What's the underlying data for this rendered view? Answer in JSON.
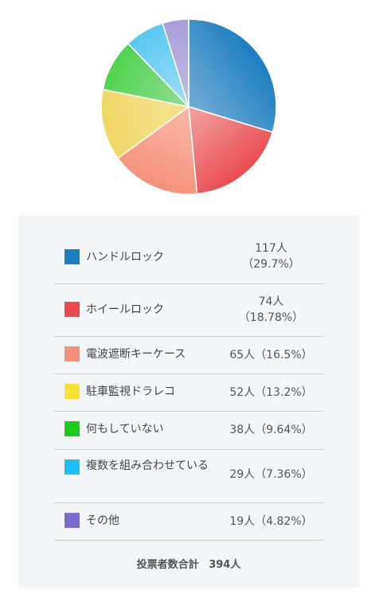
{
  "chart_data": {
    "type": "pie",
    "series": [
      {
        "name": "ハンドルロック",
        "count": 117,
        "count_label": "117人",
        "percent_label": "（29.7%）",
        "color": "#1a7ec0"
      },
      {
        "name": "ホイールロック",
        "count": 74,
        "count_label": "74人",
        "percent_label": "（18.78%）",
        "color": "#e94b4e"
      },
      {
        "name": "電波遮断キーケース",
        "count": 65,
        "count_label": "65人",
        "percent_label": "（16.5%）",
        "color": "#f5917a"
      },
      {
        "name": "駐車監視ドラレコ",
        "count": 52,
        "count_label": "52人",
        "percent_label": "（13.2%）",
        "color": "#f7df34"
      },
      {
        "name": "何もしていない",
        "count": 38,
        "count_label": "38人",
        "percent_label": "（9.64%）",
        "color": "#1ccb1c"
      },
      {
        "name": "複数を組み合わせている",
        "count": 29,
        "count_label": "29人",
        "percent_label": "（7.36%）",
        "color": "#1fbff5"
      },
      {
        "name": "その他",
        "count": 19,
        "count_label": "19人",
        "percent_label": "（4.82%）",
        "color": "#7d6bca"
      }
    ],
    "slice_colors": [
      [
        "#6da8d4",
        "#1a7ec0"
      ],
      [
        "#f29b9d",
        "#e94b4e"
      ],
      [
        "#f7b6a2",
        "#f5917a"
      ],
      [
        "#f2e391",
        "#f0d866"
      ],
      [
        "#8edc8e",
        "#4fd24f"
      ],
      [
        "#9bdcf4",
        "#58c8f2"
      ],
      [
        "#c0b8e6",
        "#a89fdb"
      ]
    ]
  },
  "total": {
    "label": "投票者数合計",
    "value": "394人"
  }
}
